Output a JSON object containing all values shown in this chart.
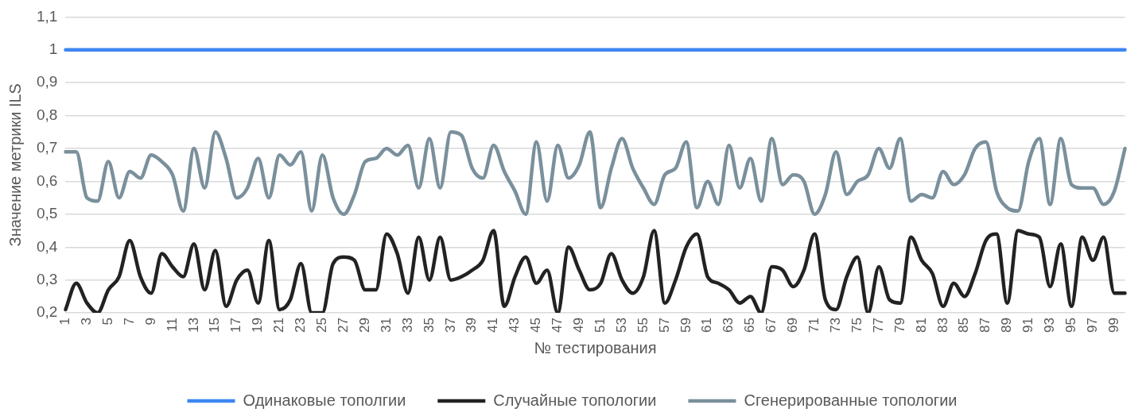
{
  "chart_data": {
    "type": "line",
    "xlabel": "№ тестирования",
    "ylabel": "Значение метрики ILS",
    "categories": [
      "1",
      null,
      "3",
      null,
      "5",
      null,
      "7",
      null,
      "9",
      null,
      "11",
      null,
      "13",
      null,
      "15",
      null,
      "17",
      null,
      "19",
      null,
      "21",
      null,
      "23",
      null,
      "25",
      null,
      "27",
      null,
      "29",
      null,
      "31",
      null,
      "33",
      null,
      "35",
      null,
      "37",
      null,
      "39",
      null,
      "41",
      null,
      "43",
      null,
      "45",
      null,
      "47",
      null,
      "49",
      null,
      "51",
      null,
      "53",
      null,
      "55",
      null,
      "57",
      null,
      "59",
      null,
      "61",
      null,
      "63",
      null,
      "65",
      null,
      "67",
      null,
      "69",
      null,
      "71",
      null,
      "73",
      null,
      "75",
      null,
      "77",
      null,
      "79",
      null,
      "81",
      null,
      "83",
      null,
      "85",
      null,
      "87",
      null,
      "89",
      null,
      "91",
      null,
      "93",
      null,
      "95",
      null,
      "97",
      null,
      "99",
      null
    ],
    "ylim": [
      0.2,
      1.1
    ],
    "yticks": [
      {
        "value": 0.2,
        "label": "0,2"
      },
      {
        "value": 0.3,
        "label": "0,3"
      },
      {
        "value": 0.4,
        "label": "0,4"
      },
      {
        "value": 0.5,
        "label": "0,5"
      },
      {
        "value": 0.6,
        "label": "0,6"
      },
      {
        "value": 0.7,
        "label": "0,7"
      },
      {
        "value": 0.8,
        "label": "0,8"
      },
      {
        "value": 0.9,
        "label": "0,9"
      },
      1,
      {
        "value": 1.1,
        "label": "1,1"
      }
    ],
    "grid": "y",
    "legend": "bottom",
    "marker": "none",
    "line_style": "solid",
    "series": [
      {
        "name": "Одинаковые тополгии",
        "color": "#3f86f2",
        "values": [
          1,
          1,
          1,
          1,
          1,
          1,
          1,
          1,
          1,
          1,
          1,
          1,
          1,
          1,
          1,
          1,
          1,
          1,
          1,
          1,
          1,
          1,
          1,
          1,
          1,
          1,
          1,
          1,
          1,
          1,
          1,
          1,
          1,
          1,
          1,
          1,
          1,
          1,
          1,
          1,
          1,
          1,
          1,
          1,
          1,
          1,
          1,
          1,
          1,
          1,
          1,
          1,
          1,
          1,
          1,
          1,
          1,
          1,
          1,
          1,
          1,
          1,
          1,
          1,
          1,
          1,
          1,
          1,
          1,
          1,
          1,
          1,
          1,
          1,
          1,
          1,
          1,
          1,
          1,
          1,
          1,
          1,
          1,
          1,
          1,
          1,
          1,
          1,
          1,
          1,
          1,
          1,
          1,
          1,
          1,
          1,
          1,
          1,
          1,
          1
        ]
      },
      {
        "name": "Случайные топологии",
        "color": "#222222",
        "values": [
          0.21,
          0.29,
          0.23,
          0.2,
          0.27,
          0.31,
          0.42,
          0.31,
          0.26,
          0.38,
          0.34,
          0.31,
          0.41,
          0.27,
          0.39,
          0.22,
          0.3,
          0.33,
          0.23,
          0.42,
          0.21,
          0.24,
          0.35,
          0.2,
          0.2,
          0.35,
          0.37,
          0.36,
          0.27,
          0.27,
          0.44,
          0.38,
          0.26,
          0.43,
          0.3,
          0.43,
          0.3,
          0.31,
          0.33,
          0.36,
          0.45,
          0.22,
          0.31,
          0.37,
          0.29,
          0.33,
          0.2,
          0.4,
          0.33,
          0.27,
          0.29,
          0.38,
          0.3,
          0.26,
          0.31,
          0.45,
          0.23,
          0.3,
          0.4,
          0.44,
          0.31,
          0.29,
          0.27,
          0.23,
          0.25,
          0.2,
          0.34,
          0.33,
          0.28,
          0.33,
          0.44,
          0.24,
          0.21,
          0.31,
          0.37,
          0.2,
          0.34,
          0.24,
          0.23,
          0.43,
          0.36,
          0.32,
          0.22,
          0.29,
          0.25,
          0.32,
          0.42,
          0.44,
          0.23,
          0.45,
          0.44,
          0.43,
          0.28,
          0.41,
          0.22,
          0.43,
          0.36,
          0.43,
          0.26,
          0.26
        ]
      },
      {
        "name": "Сгенерированные топологии",
        "color": "#7a909c",
        "values": [
          0.69,
          0.69,
          0.55,
          0.54,
          0.66,
          0.55,
          0.63,
          0.61,
          0.68,
          0.66,
          0.62,
          0.51,
          0.7,
          0.58,
          0.75,
          0.67,
          0.55,
          0.58,
          0.67,
          0.55,
          0.68,
          0.65,
          0.69,
          0.51,
          0.68,
          0.55,
          0.5,
          0.56,
          0.66,
          0.67,
          0.7,
          0.68,
          0.71,
          0.58,
          0.73,
          0.58,
          0.75,
          0.74,
          0.64,
          0.61,
          0.71,
          0.63,
          0.57,
          0.5,
          0.72,
          0.54,
          0.71,
          0.61,
          0.65,
          0.75,
          0.52,
          0.64,
          0.73,
          0.64,
          0.58,
          0.53,
          0.62,
          0.64,
          0.72,
          0.52,
          0.6,
          0.53,
          0.71,
          0.58,
          0.67,
          0.54,
          0.73,
          0.59,
          0.62,
          0.6,
          0.5,
          0.56,
          0.69,
          0.56,
          0.6,
          0.62,
          0.7,
          0.64,
          0.73,
          0.54,
          0.56,
          0.55,
          0.63,
          0.59,
          0.62,
          0.7,
          0.72,
          0.57,
          0.52,
          0.51,
          0.66,
          0.73,
          0.53,
          0.73,
          0.59,
          0.58,
          0.58,
          0.53,
          0.57,
          0.7
        ]
      }
    ]
  }
}
